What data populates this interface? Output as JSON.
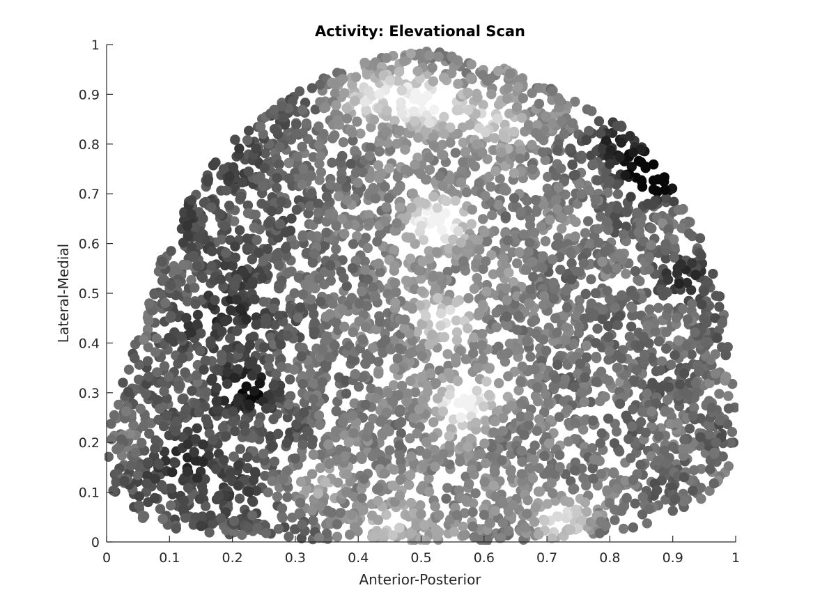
{
  "chart_data": {
    "type": "scatter",
    "title": "Activity: Elevational Scan",
    "xlabel": "Anterior-Posterior",
    "ylabel": "Lateral-Medial",
    "xlim": [
      0,
      1
    ],
    "ylim": [
      0,
      1
    ],
    "xticks": [
      "0",
      "0.1",
      "0.2",
      "0.3",
      "0.4",
      "0.5",
      "0.6",
      "0.7",
      "0.8",
      "0.9",
      "1"
    ],
    "yticks": [
      "0",
      "0.1",
      "0.2",
      "0.3",
      "0.4",
      "0.5",
      "0.6",
      "0.7",
      "0.8",
      "0.9",
      "1"
    ],
    "grid": false,
    "colormap": "gray",
    "series": [
      {
        "marker": "filled-circle",
        "note_region_boundary": [
          [
            0.0,
            0.25
          ],
          [
            0.02,
            0.3
          ],
          [
            0.04,
            0.38
          ],
          [
            0.06,
            0.46
          ],
          [
            0.08,
            0.55
          ],
          [
            0.1,
            0.6
          ],
          [
            0.12,
            0.66
          ],
          [
            0.15,
            0.73
          ],
          [
            0.18,
            0.78
          ],
          [
            0.22,
            0.83
          ],
          [
            0.27,
            0.88
          ],
          [
            0.32,
            0.92
          ],
          [
            0.38,
            0.95
          ],
          [
            0.44,
            0.98
          ],
          [
            0.5,
            0.99
          ],
          [
            0.56,
            0.98
          ],
          [
            0.62,
            0.96
          ],
          [
            0.68,
            0.93
          ],
          [
            0.74,
            0.9
          ],
          [
            0.79,
            0.86
          ],
          [
            0.84,
            0.82
          ],
          [
            0.88,
            0.75
          ],
          [
            0.91,
            0.69
          ],
          [
            0.94,
            0.63
          ],
          [
            0.96,
            0.56
          ],
          [
            0.98,
            0.48
          ],
          [
            0.99,
            0.4
          ],
          [
            1.0,
            0.31
          ],
          [
            1.0,
            0.22
          ],
          [
            0.99,
            0.15
          ],
          [
            0.97,
            0.1
          ],
          [
            0.92,
            0.07
          ],
          [
            0.85,
            0.03
          ],
          [
            0.75,
            0.01
          ],
          [
            0.6,
            0.0
          ],
          [
            0.4,
            0.0
          ],
          [
            0.25,
            0.01
          ],
          [
            0.12,
            0.02
          ],
          [
            0.05,
            0.05
          ],
          [
            0.01,
            0.1
          ],
          [
            0.0,
            0.18
          ]
        ],
        "bright_spots": [
          [
            0.5,
            0.88,
            0.95
          ],
          [
            0.52,
            0.64,
            0.92
          ],
          [
            0.57,
            0.28,
            0.9
          ],
          [
            0.42,
            0.9,
            0.78
          ],
          [
            0.73,
            0.05,
            0.8
          ],
          [
            0.62,
            0.85,
            0.75
          ],
          [
            0.53,
            0.45,
            0.72
          ],
          [
            0.35,
            0.12,
            0.68
          ],
          [
            0.45,
            0.02,
            0.7
          ]
        ],
        "dark_spots": [
          [
            0.85,
            0.75,
            0.08
          ],
          [
            0.88,
            0.73,
            0.05
          ],
          [
            0.93,
            0.53,
            0.2
          ],
          [
            0.23,
            0.3,
            0.15
          ],
          [
            0.12,
            0.14,
            0.2
          ],
          [
            0.2,
            0.45,
            0.22
          ],
          [
            0.8,
            0.8,
            0.15
          ]
        ]
      }
    ]
  }
}
